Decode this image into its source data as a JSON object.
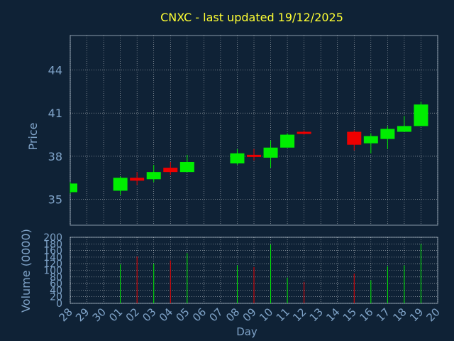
{
  "colors": {
    "background": "#0f2236",
    "title": "#ffff33",
    "axis_text": "#7fa3c8",
    "grid": "#ffffff",
    "up": "#00ee00",
    "down": "#ee0000"
  },
  "chart_data": {
    "type": "candlestick",
    "title": "CNXC - last updated 19/12/2025",
    "price_panel": {
      "ylabel": "Price",
      "ylim": [
        33.2,
        46.4
      ],
      "yticks": [
        "35",
        "38",
        "41",
        "44"
      ],
      "grid": true
    },
    "volume_panel": {
      "ylabel": "Volume (0000)",
      "ylim": [
        0,
        200
      ],
      "yticks": [
        "0",
        "20",
        "40",
        "60",
        "80",
        "100",
        "120",
        "140",
        "160",
        "180",
        "200"
      ],
      "grid": true
    },
    "xlabel": "Day",
    "x_ticks": [
      "28",
      "29",
      "30",
      "01",
      "02",
      "03",
      "04",
      "05",
      "06",
      "07",
      "08",
      "09",
      "10",
      "11",
      "12",
      "13",
      "14",
      "15",
      "16",
      "17",
      "18",
      "19",
      "20"
    ],
    "candles": [
      {
        "day": "28",
        "open": 35.5,
        "high": 36.2,
        "low": 35.4,
        "close": 36.1,
        "volume": 0
      },
      {
        "day": "01",
        "open": 35.6,
        "high": 36.6,
        "low": 35.3,
        "close": 36.5,
        "volume": 118
      },
      {
        "day": "02",
        "open": 36.5,
        "high": 36.9,
        "low": 36.0,
        "close": 36.3,
        "volume": 142
      },
      {
        "day": "03",
        "open": 36.4,
        "high": 37.4,
        "low": 36.2,
        "close": 36.9,
        "volume": 120
      },
      {
        "day": "04",
        "open": 37.2,
        "high": 37.6,
        "low": 36.7,
        "close": 36.9,
        "volume": 130
      },
      {
        "day": "05",
        "open": 36.9,
        "high": 38.1,
        "low": 36.9,
        "close": 37.6,
        "volume": 152
      },
      {
        "day": "08",
        "open": 37.5,
        "high": 38.5,
        "low": 37.4,
        "close": 38.2,
        "volume": 115
      },
      {
        "day": "09",
        "open": 38.1,
        "high": 38.5,
        "low": 37.7,
        "close": 38.0,
        "volume": 110
      },
      {
        "day": "10",
        "open": 37.9,
        "high": 39.1,
        "low": 37.2,
        "close": 38.6,
        "volume": 178
      },
      {
        "day": "11",
        "open": 38.6,
        "high": 39.6,
        "low": 38.6,
        "close": 39.5,
        "volume": 78
      },
      {
        "day": "12",
        "open": 39.7,
        "high": 39.8,
        "low": 39.5,
        "close": 39.6,
        "volume": 65
      },
      {
        "day": "15",
        "open": 39.7,
        "high": 39.8,
        "low": 38.4,
        "close": 38.8,
        "volume": 90
      },
      {
        "day": "16",
        "open": 38.9,
        "high": 39.6,
        "low": 38.2,
        "close": 39.4,
        "volume": 70
      },
      {
        "day": "17",
        "open": 39.2,
        "high": 40.1,
        "low": 38.5,
        "close": 39.9,
        "volume": 112
      },
      {
        "day": "18",
        "open": 39.7,
        "high": 40.8,
        "low": 39.7,
        "close": 40.1,
        "volume": 115
      },
      {
        "day": "19",
        "open": 40.1,
        "high": 41.8,
        "low": 40.1,
        "close": 41.6,
        "volume": 180
      }
    ]
  }
}
